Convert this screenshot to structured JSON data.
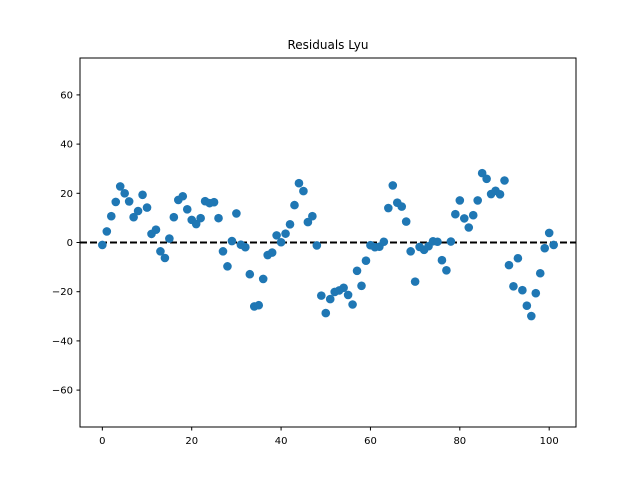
{
  "chart_data": {
    "type": "scatter",
    "title": "Residuals Lyu",
    "xlabel": "",
    "ylabel": "",
    "xlim": [
      -5,
      106
    ],
    "ylim": [
      -75,
      75
    ],
    "xticks": [
      0,
      20,
      40,
      60,
      80,
      100
    ],
    "yticks": [
      -60,
      -40,
      -20,
      0,
      20,
      40,
      60
    ],
    "grid": false,
    "legend": "none",
    "point_color": "#1f77b4",
    "reference_line": {
      "y": 0,
      "style": "dashed",
      "color": "#000000"
    },
    "series": [
      {
        "x": [
          0,
          1,
          2,
          3,
          4,
          5,
          6,
          7,
          8,
          9,
          10,
          11,
          12,
          13,
          14,
          15,
          16,
          17,
          18,
          19,
          20,
          21,
          22,
          23,
          24,
          25,
          26,
          27,
          28,
          29,
          30,
          31,
          32,
          33,
          34,
          35,
          36,
          37,
          38,
          39,
          40,
          41,
          42,
          43,
          44,
          45,
          46,
          47,
          48,
          49,
          50,
          51,
          52,
          53,
          54,
          55,
          56,
          57,
          58,
          59,
          60,
          61,
          62,
          63,
          64,
          65,
          66,
          67,
          68,
          69,
          70,
          71,
          72,
          73,
          74,
          75,
          76,
          77,
          78,
          79,
          80,
          81,
          82,
          83,
          84,
          85,
          86,
          87,
          88,
          89,
          90,
          91,
          92,
          93,
          94,
          95,
          96,
          97,
          98,
          99,
          100,
          101
        ],
        "y": [
          -1,
          4.5,
          10.7,
          16.5,
          22.8,
          20,
          16.7,
          10.3,
          12.8,
          19.4,
          14.2,
          3.5,
          5.2,
          -3.6,
          -6.3,
          1.6,
          10.3,
          17.3,
          18.8,
          13.5,
          9.2,
          7.5,
          9.9,
          16.8,
          16,
          16.4,
          9.9,
          -3.6,
          -9.7,
          0.6,
          11.8,
          -0.9,
          -1.9,
          -12.9,
          -26,
          -25.5,
          -14.8,
          -5.1,
          -4.1,
          2.9,
          0.1,
          3.6,
          7.4,
          15.2,
          24.1,
          20.9,
          8.3,
          10.7,
          -1.2,
          -21.6,
          -28.7,
          -23,
          -20.1,
          -19.5,
          -18.4,
          -21.3,
          -25.2,
          -11.5,
          -17.6,
          -7.4,
          -1.1,
          -1.9,
          -1.7,
          0.3,
          14,
          23.2,
          16.2,
          14.6,
          8.5,
          -3.6,
          -15.9,
          -1.8,
          -3,
          -1.5,
          0.5,
          0.3,
          -7.2,
          -11.3,
          0.4,
          11.5,
          17.1,
          9.8,
          6.1,
          11.1,
          17.1,
          28.2,
          25.9,
          19.7,
          21,
          19.6,
          25.2,
          -9.2,
          -17.8,
          -6.4,
          -19.4,
          -25.7,
          -29.9,
          -20.6,
          -12.5,
          -2.3,
          3.9,
          -1
        ]
      }
    ]
  }
}
